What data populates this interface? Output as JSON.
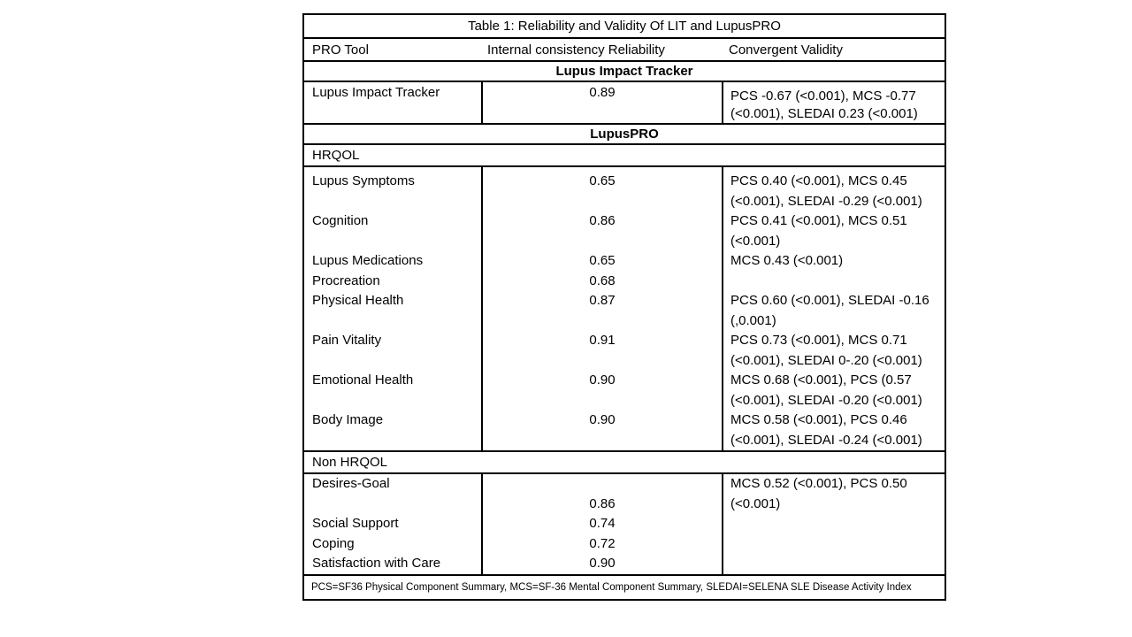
{
  "table": {
    "title": "Table 1: Reliability and Validity Of LIT and LupusPRO",
    "columns": [
      "PRO Tool",
      "Internal consistency Reliability",
      "Convergent Validity"
    ],
    "sections": {
      "lit": {
        "heading": "Lupus Impact Tracker",
        "row": {
          "label": "Lupus Impact Tracker",
          "value": "0.89",
          "validity": "PCS -0.67 (<0.001), MCS -0.77 (<0.001), SLEDAI 0.23 (<0.001)"
        }
      },
      "lupuspro": {
        "heading": "LupusPRO",
        "hrqol_label": "HRQOL",
        "hrqol_rows": [
          {
            "label": "Lupus Symptoms",
            "value": "0.65",
            "validity": "PCS 0.40 (<0.001), MCS 0.45 (<0.001), SLEDAI -0.29 (<0.001)"
          },
          {
            "label": "Cognition",
            "value": "0.86",
            "validity": "PCS 0.41 (<0.001), MCS 0.51 (<0.001)"
          },
          {
            "label": "Lupus Medications",
            "value": "0.65",
            "validity": "MCS 0.43 (<0.001)"
          },
          {
            "label": "Procreation",
            "value": "0.68",
            "validity": ""
          },
          {
            "label": "Physical Health",
            "value": "0.87",
            "validity": "PCS 0.60 (<0.001), SLEDAI -0.16 (,0.001)"
          },
          {
            "label": "Pain Vitality",
            "value": "0.91",
            "validity": "PCS 0.73 (<0.001), MCS 0.71 (<0.001), SLEDAI 0-.20 (<0.001)"
          },
          {
            "label": "Emotional Health",
            "value": "0.90",
            "validity": "MCS 0.68 (<0.001), PCS (0.57 (<0.001), SLEDAI -0.20 (<0.001)"
          },
          {
            "label": "Body Image",
            "value": "0.90",
            "validity": "MCS 0.58 (<0.001), PCS 0.46 (<0.001), SLEDAI -0.24 (<0.001)"
          }
        ],
        "non_hrqol_label": "Non HRQOL",
        "non_hrqol": {
          "labels": [
            "Desires-Goal",
            "",
            "Social Support",
            "Coping",
            "Satisfaction with Care"
          ],
          "values": [
            "",
            "0.86",
            "0.74",
            "0.72",
            "0.90"
          ],
          "validity": "MCS 0.52 (<0.001), PCS 0.50 (<0.001)"
        }
      }
    },
    "footnote": "PCS=SF36 Physical Component Summary, MCS=SF-36 Mental Component Summary, SLEDAI=SELENA SLE Disease Activity Index"
  }
}
